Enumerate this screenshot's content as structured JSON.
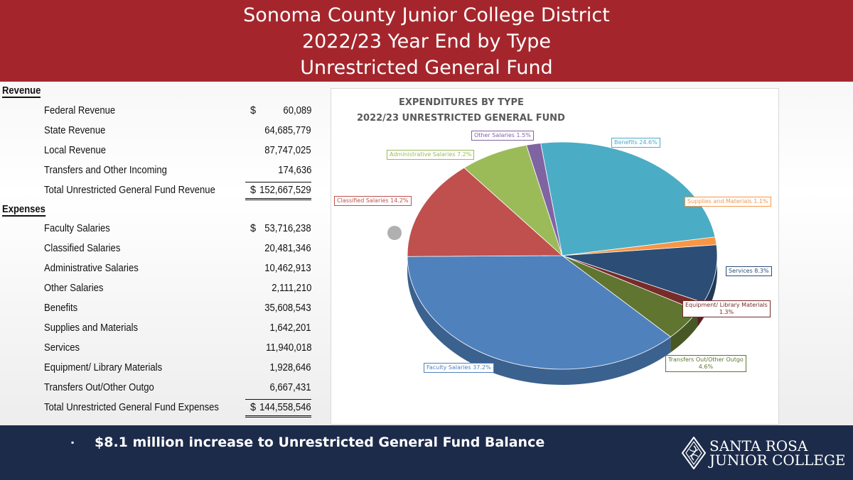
{
  "header": {
    "line1": "Sonoma County Junior College District",
    "line2": "2022/23 Year End by Type",
    "line3": "Unrestricted General Fund"
  },
  "revenue": {
    "heading": "Revenue",
    "rows": [
      {
        "label": "Federal Revenue",
        "currency": "$",
        "amount": "60,089"
      },
      {
        "label": "State Revenue",
        "currency": "",
        "amount": "64,685,779"
      },
      {
        "label": "Local Revenue",
        "currency": "",
        "amount": "87,747,025"
      },
      {
        "label": "Transfers and Other Incoming",
        "currency": "",
        "amount": "174,636"
      }
    ],
    "total": {
      "label": "Total Unrestricted General Fund Revenue",
      "currency": "$",
      "amount": "152,667,529"
    }
  },
  "expenses": {
    "heading": "Expenses",
    "rows": [
      {
        "label": "Faculty Salaries",
        "currency": "$",
        "amount": "53,716,238"
      },
      {
        "label": "Classified Salaries",
        "currency": "",
        "amount": "20,481,346"
      },
      {
        "label": "Administrative Salaries",
        "currency": "",
        "amount": "10,462,913"
      },
      {
        "label": "Other Salaries",
        "currency": "",
        "amount": "2,111,210"
      },
      {
        "label": "Benefits",
        "currency": "",
        "amount": "35,608,543"
      },
      {
        "label": "Supplies and Materials",
        "currency": "",
        "amount": "1,642,201"
      },
      {
        "label": "Services",
        "currency": "",
        "amount": "11,940,018"
      },
      {
        "label": "Equipment/ Library Materials",
        "currency": "",
        "amount": "1,928,646"
      },
      {
        "label": "Transfers Out/Other Outgo",
        "currency": "",
        "amount": "6,667,431"
      }
    ],
    "total": {
      "label": "Total Unrestricted General Fund Expenses",
      "currency": "$",
      "amount": "144,558,546"
    }
  },
  "chart_data": {
    "type": "pie",
    "title": "EXPENDITURES BY TYPE",
    "subtitle": "2022/23 UNRESTRICTED GENERAL FUND",
    "slices": [
      {
        "label": "Faculty Salaries",
        "percent": 37.2,
        "display": "Faculty Salaries 37.2%",
        "color": "#4f81bd"
      },
      {
        "label": "Classified Salaries",
        "percent": 14.2,
        "display": "Classified Salaries 14.2%",
        "color": "#c0504d"
      },
      {
        "label": "Administrative Salaries",
        "percent": 7.2,
        "display": "Administrative Salaries 7.2%",
        "color": "#9bbb59"
      },
      {
        "label": "Other Salaries",
        "percent": 1.5,
        "display": "Other Salaries 1.5%",
        "color": "#8064a2"
      },
      {
        "label": "Benefits",
        "percent": 24.6,
        "display": "Benefits 24.6%",
        "color": "#4bacc6"
      },
      {
        "label": "Supplies and Materials",
        "percent": 1.1,
        "display": "Supplies and Materials 1.1%",
        "color": "#f79646"
      },
      {
        "label": "Services",
        "percent": 8.3,
        "display": "Services 8.3%",
        "color": "#2c4d75"
      },
      {
        "label": "Equipment/ Library Materials",
        "percent": 1.3,
        "display_line1": "Equipment/ Library Materials",
        "display_line2": "1.3%",
        "color": "#772c2a"
      },
      {
        "label": "Transfers Out/Other Outgo",
        "percent": 4.6,
        "display_line1": "Transfers Out/Other Outgo",
        "display_line2": "4.6%",
        "color": "#5f7530"
      }
    ]
  },
  "footer": {
    "bullet": "▪",
    "note": "$8.1 million increase to Unrestricted General Fund Balance",
    "logo_line1": "SANTA ROSA",
    "logo_line2": "JUNIOR COLLEGE"
  }
}
